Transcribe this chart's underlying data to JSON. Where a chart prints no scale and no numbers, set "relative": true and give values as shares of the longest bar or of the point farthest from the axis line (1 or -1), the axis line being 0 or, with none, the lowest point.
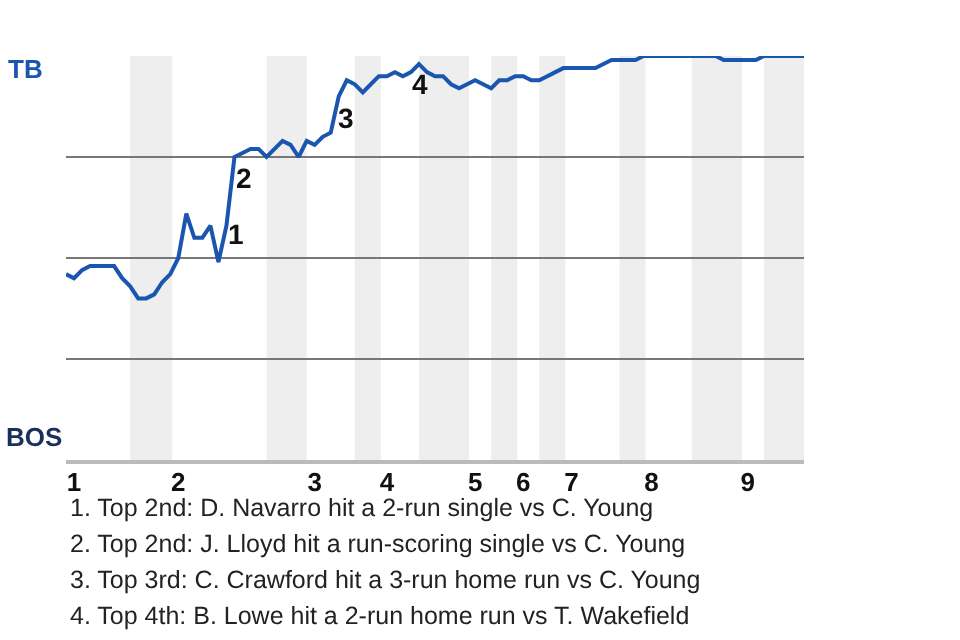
{
  "chart_data": {
    "type": "line",
    "relative": true,
    "categories": [
      null,
      "1",
      null,
      null,
      null,
      null,
      null,
      null,
      null,
      null,
      null,
      null,
      null,
      null,
      "2",
      null,
      null,
      null,
      null,
      null,
      null,
      null,
      null,
      null,
      null,
      null,
      null,
      null,
      null,
      null,
      null,
      "3",
      null,
      null,
      null,
      null,
      null,
      null,
      null,
      null,
      "4",
      null,
      null,
      null,
      null,
      null,
      null,
      null,
      null,
      null,
      null,
      "5",
      null,
      null,
      null,
      null,
      null,
      "6",
      null,
      null,
      null,
      null,
      null,
      "7",
      null,
      null,
      null,
      null,
      null,
      null,
      null,
      null,
      null,
      "8",
      null,
      null,
      null,
      null,
      null,
      null,
      null,
      null,
      null,
      null,
      null,
      "9",
      null,
      null,
      null,
      null,
      null,
      null,
      null
    ],
    "series": [
      {
        "color": "#1a56b0",
        "values": [
          0.46,
          0.45,
          0.47,
          0.48,
          0.48,
          0.48,
          0.48,
          0.45,
          0.43,
          0.4,
          0.4,
          0.41,
          0.44,
          0.46,
          0.5,
          0.61,
          0.55,
          0.55,
          0.58,
          0.49,
          0.58,
          0.75,
          0.76,
          0.77,
          0.77,
          0.75,
          0.77,
          0.79,
          0.78,
          0.75,
          0.79,
          0.78,
          0.8,
          0.81,
          0.9,
          0.94,
          0.93,
          0.91,
          0.93,
          0.95,
          0.95,
          0.96,
          0.95,
          0.96,
          0.98,
          0.96,
          0.95,
          0.95,
          0.93,
          0.92,
          0.93,
          0.94,
          0.93,
          0.92,
          0.94,
          0.94,
          0.95,
          0.95,
          0.94,
          0.94,
          0.95,
          0.96,
          0.97,
          0.97,
          0.97,
          0.97,
          0.97,
          0.98,
          0.99,
          0.99,
          0.99,
          0.99,
          1.0,
          1.0,
          1.0,
          1.0,
          1.0,
          1.0,
          1.0,
          1.0,
          1.0,
          1.0,
          0.99,
          0.99,
          0.99,
          0.99,
          0.99,
          1.0,
          1.0,
          1.0,
          1.0,
          1.0,
          1.0
        ]
      }
    ],
    "grid": "y",
    "marker": "none",
    "line_style": "solid",
    "annotations": [
      "TB",
      "BOS",
      "1",
      "2",
      "3",
      "4",
      "1. Top 2nd: D. Navarro hit a 2-run single vs C. Young",
      "2. Top 2nd: J. Lloyd hit a run-scoring single vs C. Young",
      "3. Top 3rd: C. Crawford hit a 3-run home run vs C. Young",
      "4. Top 4th: B. Lowe hit a 2-run home run vs T. Wakefield"
    ]
  }
}
